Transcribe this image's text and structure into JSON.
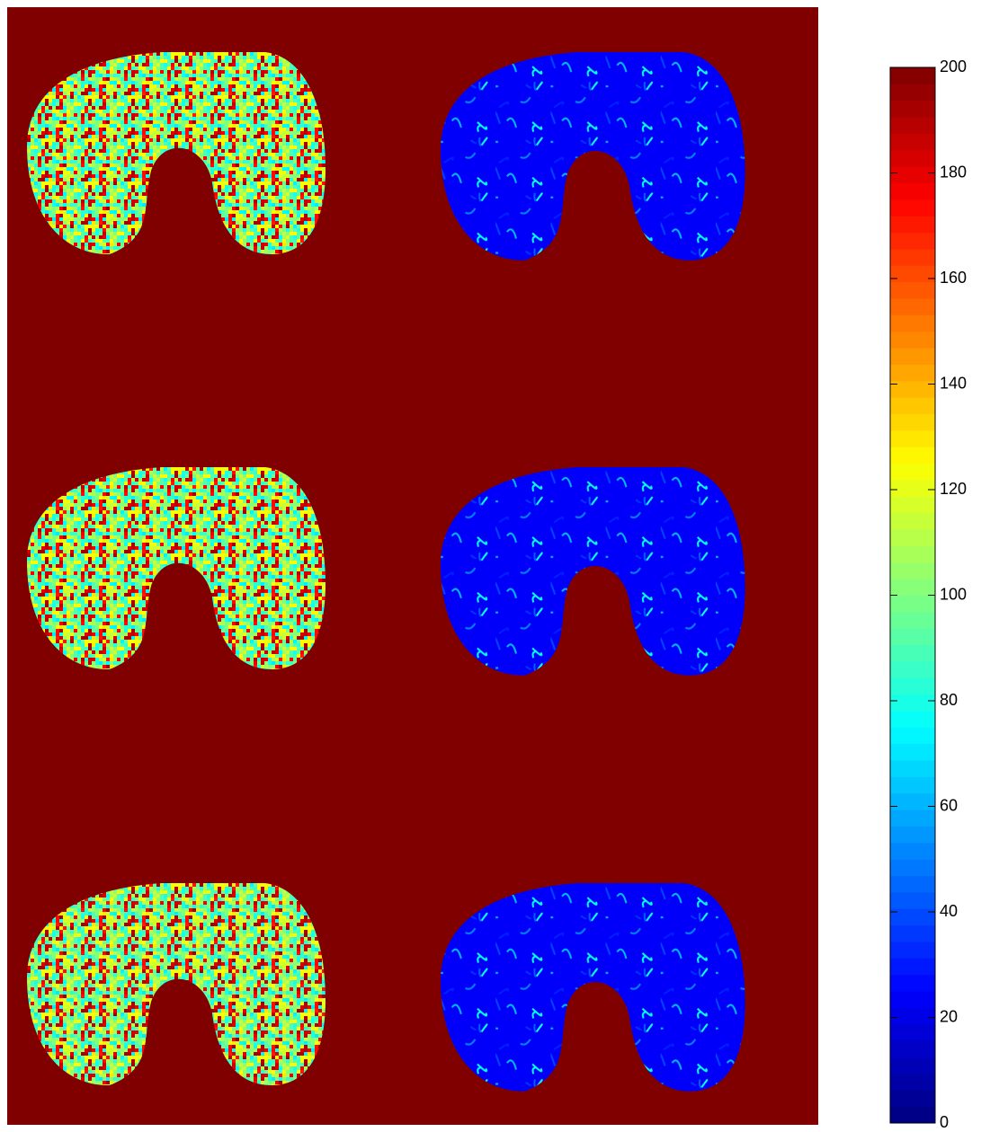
{
  "chart_data": {
    "type": "colorbar",
    "colormap": "jet",
    "clim": [
      0,
      200
    ],
    "yticks": [
      0,
      20,
      40,
      60,
      80,
      100,
      120,
      140,
      160,
      180,
      200
    ],
    "background": "#800000"
  }
}
